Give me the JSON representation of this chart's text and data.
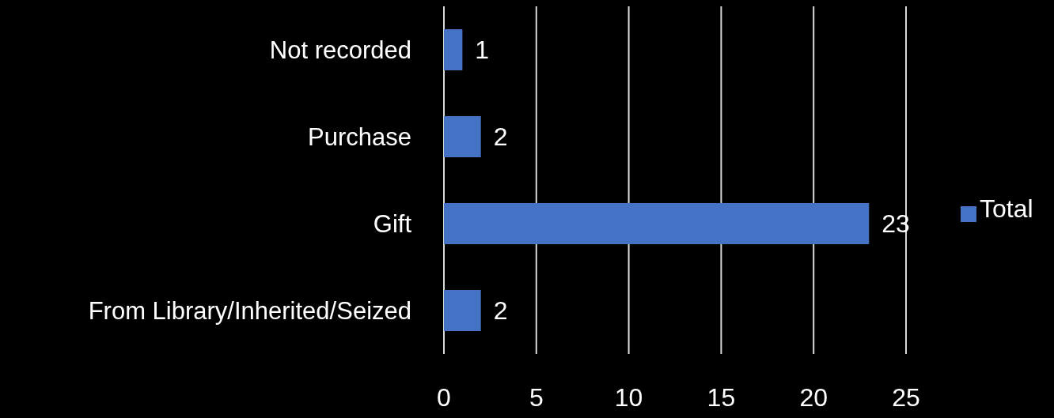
{
  "chart_data": {
    "type": "bar",
    "orientation": "horizontal",
    "categories": [
      "Not recorded",
      "Purchase",
      "Gift",
      "From Library/Inherited/Seized"
    ],
    "series": [
      {
        "name": "Total",
        "color": "#4472c4",
        "values": [
          1,
          2,
          23,
          2
        ]
      }
    ],
    "xlim": [
      0,
      25
    ],
    "xticks": [
      0,
      5,
      10,
      15,
      20,
      25
    ],
    "grid": "x",
    "legend": "right",
    "data_labels": true
  }
}
